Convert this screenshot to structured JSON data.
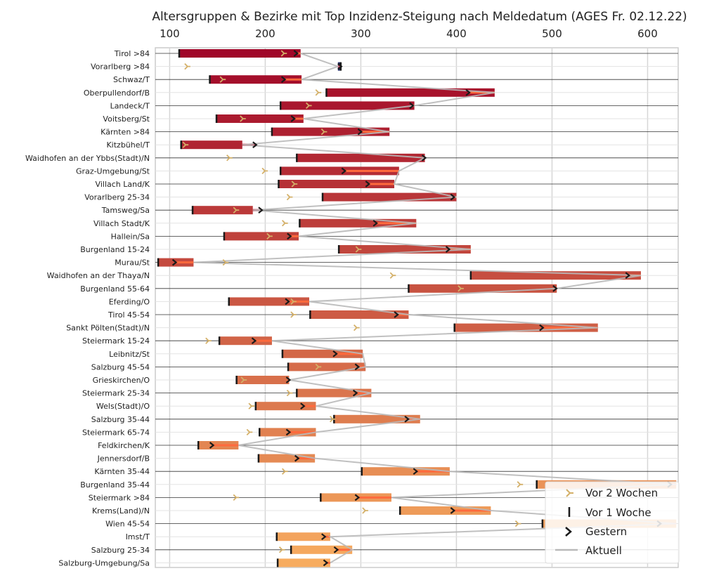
{
  "chart_data": {
    "type": "bar",
    "title": "Altersgruppen & Bezirke mit Top Inzidenz-Steigung nach Meldedatum (AGES Fr. 02.12.22)",
    "xlim": [
      85,
      632
    ],
    "xticks": [
      100,
      200,
      300,
      400,
      500,
      600
    ],
    "grid": true,
    "legend_position": "lower-right",
    "colors": {
      "vor2": "#d4b068",
      "vor1": "#1a1a1a",
      "gestern": "#1a1a1a",
      "aktuell_line": "#b9b9b9",
      "decrease": "#1f2a6b",
      "highlight": "#ff6a3d"
    },
    "legend": [
      "Vor 2 Wochen",
      "Vor 1 Woche",
      "Gestern",
      "Aktuell"
    ],
    "categories": [
      "Tirol >84",
      "Vorarlberg >84",
      "Schwaz/T",
      "Oberpullendorf/B",
      "Landeck/T",
      "Voitsberg/St",
      "Kärnten >84",
      "Kitzbühel/T",
      "Waidhofen an der Ybbs(Stadt)/N",
      "Graz-Umgebung/St",
      "Villach Land/K",
      "Vorarlberg 25-34",
      "Tamsweg/Sa",
      "Villach Stadt/K",
      "Hallein/Sa",
      "Burgenland 15-24",
      "Murau/St",
      "Waidhofen an der Thaya/N",
      "Burgenland 55-64",
      "Eferding/O",
      "Tirol 45-54",
      "Sankt Pölten(Stadt)/N",
      "Steiermark 15-24",
      "Leibnitz/St",
      "Salzburg 45-54",
      "Grieskirchen/O",
      "Steiermark 25-34",
      "Wels(Stadt)/O",
      "Salzburg 35-44",
      "Steiermark 65-74",
      "Feldkirchen/K",
      "Jennersdorf/B",
      "Kärnten 35-44",
      "Burgenland 35-44",
      "Steiermark >84",
      "Krems(Land)/N",
      "Wien 45-54",
      "Imst/T",
      "Salzburg 25-34",
      "Salzburg-Umgebung/Sa"
    ],
    "series": [
      {
        "name": "Vor 2 Wochen",
        "values": [
          219,
          118,
          155,
          255,
          245,
          176,
          261,
          116,
          162,
          199,
          230,
          225,
          169,
          220,
          204,
          297,
          158,
          333,
          404,
          229,
          229,
          295,
          140,
          null,
          255,
          177,
          225,
          185,
          270,
          183,
          null,
          null,
          220,
          466,
          169,
          304,
          464,
          null,
          217,
          null
        ]
      },
      {
        "name": "Vor 1 Woche",
        "values": [
          110,
          279,
          142,
          264,
          216,
          149,
          207,
          112,
          233,
          216,
          214,
          260,
          124,
          236,
          157,
          277,
          88,
          415,
          350,
          162,
          247,
          398,
          152,
          218,
          224,
          170,
          233,
          190,
          272,
          194,
          130,
          193,
          301,
          484,
          258,
          341,
          490,
          212,
          227,
          213
        ]
      },
      {
        "name": "Gestern",
        "values": [
          233,
          279,
          220,
          413,
          354,
          230,
          300,
          190,
          367,
          283,
          308,
          397,
          196,
          316,
          226,
          392,
          106,
          580,
          504,
          224,
          338,
          490,
          189,
          274,
          297,
          225,
          295,
          240,
          349,
          225,
          145,
          234,
          358,
          624,
          297,
          397,
          613,
          262,
          275,
          264
        ]
      },
      {
        "name": "Aktuell",
        "values": [
          237,
          276,
          238,
          440,
          356,
          240,
          330,
          176,
          367,
          340,
          335,
          400,
          187,
          358,
          235,
          415,
          125,
          593,
          505,
          246,
          350,
          548,
          207,
          302,
          305,
          225,
          311,
          253,
          362,
          253,
          172,
          252,
          393,
          630,
          332,
          436,
          630,
          268,
          291,
          268
        ]
      }
    ]
  }
}
